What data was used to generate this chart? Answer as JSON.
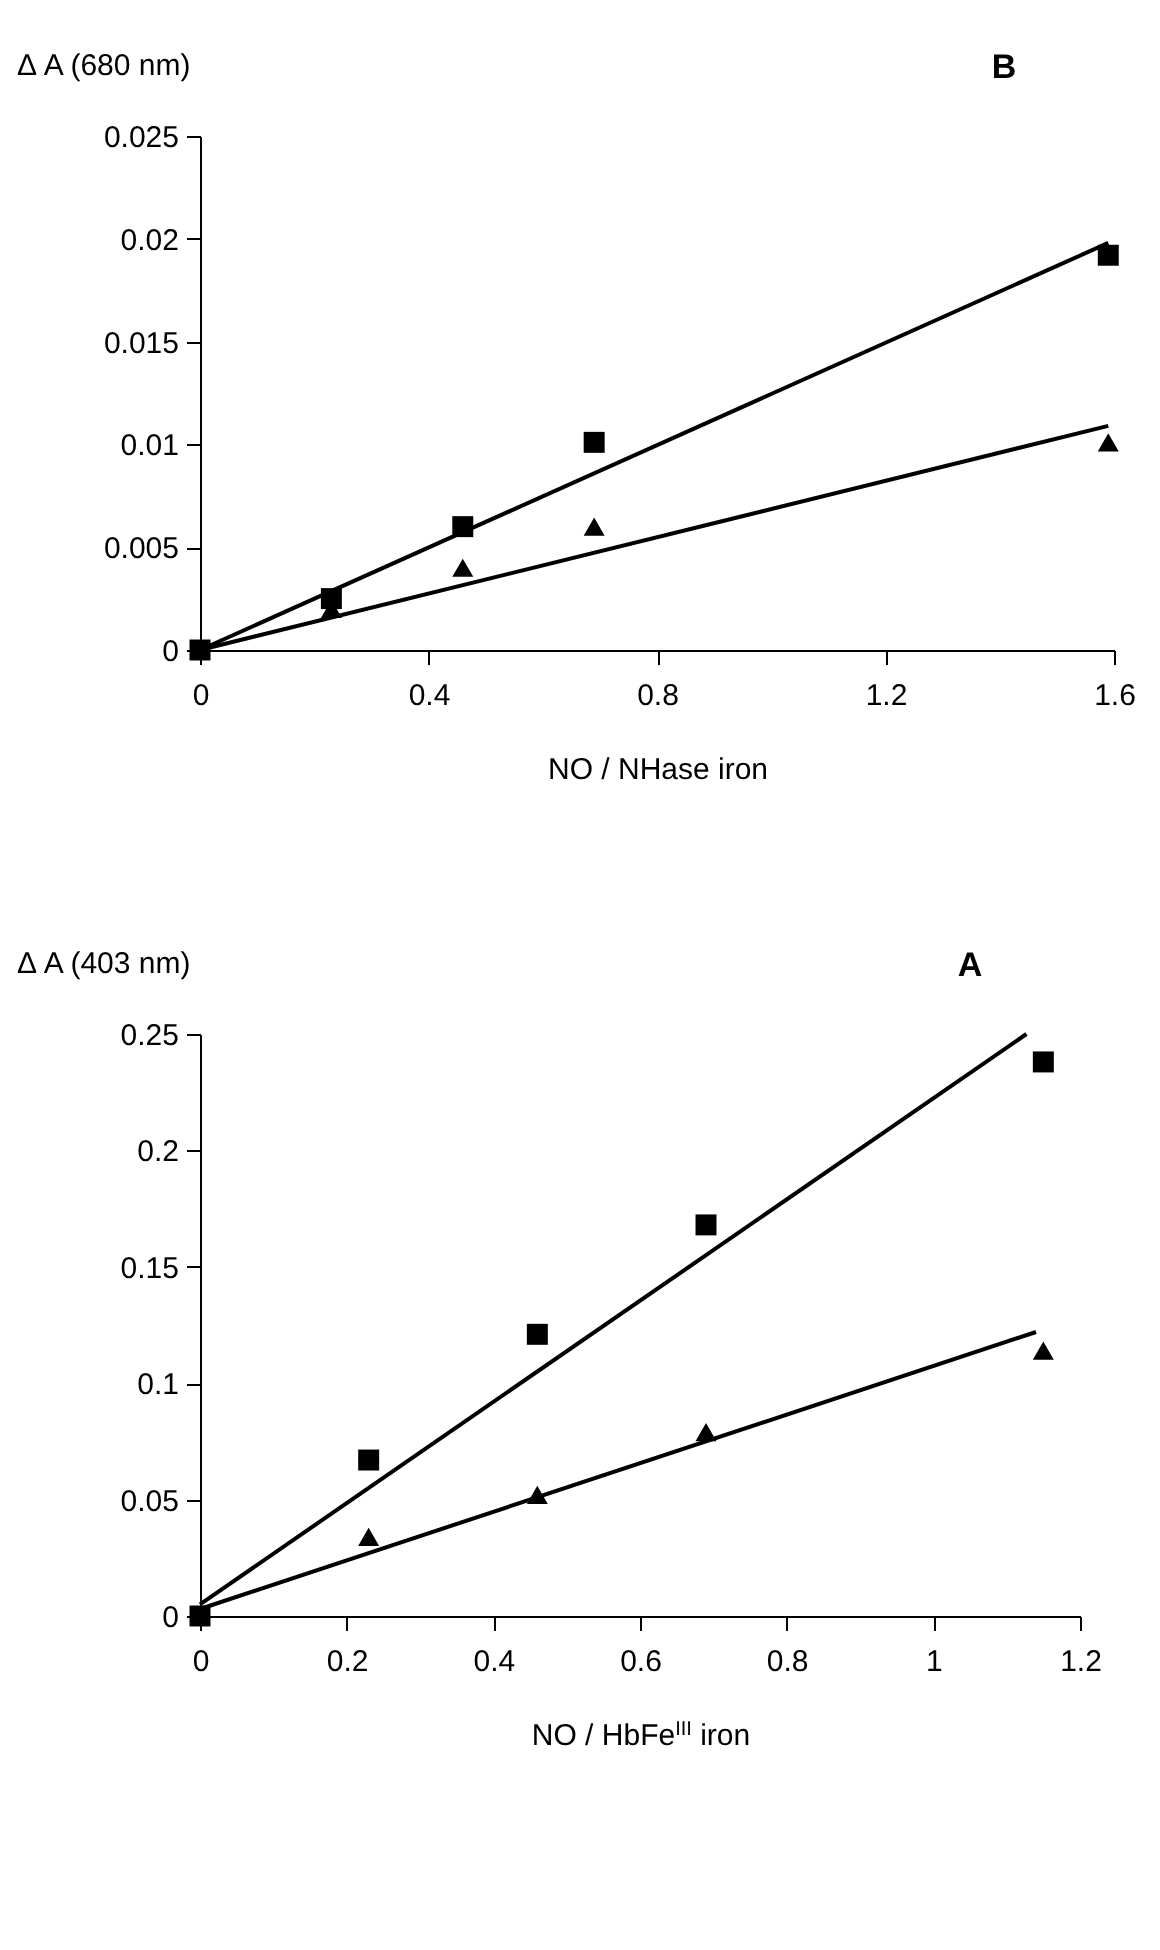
{
  "chart_data": [
    {
      "type": "scatter",
      "ylabel": "Δ A (680 nm)",
      "xlabel": "NO / NHase iron",
      "annotations": [
        "B"
      ],
      "xlim": [
        0,
        1.6
      ],
      "xticks": [
        0,
        0.4,
        0.8,
        1.2,
        1.6
      ],
      "ylim": [
        0,
        0.025
      ],
      "yticks": [
        0,
        0.005,
        0.01,
        0.015,
        0.02,
        0.025
      ],
      "grid": false,
      "x": [
        0,
        0.23,
        0.46,
        0.69,
        1.59
      ],
      "series": [
        {
          "color": "#000000",
          "marker": "square",
          "values": [
            0,
            0.0025,
            0.006,
            0.0101,
            0.0192
          ]
        },
        {
          "color": "#000000",
          "marker": "triangle",
          "values": [
            null,
            0.002,
            0.004,
            0.006,
            0.0101
          ]
        },
        {
          "type": "line",
          "color": "#000000",
          "marker": "none",
          "x": [
            0,
            1.59
          ],
          "values": [
            0,
            0.0198
          ]
        },
        {
          "type": "line",
          "color": "#000000",
          "marker": "none",
          "x": [
            0,
            1.59
          ],
          "values": [
            0,
            0.0109
          ]
        }
      ]
    },
    {
      "type": "scatter",
      "ylabel": "Δ A (403 nm)",
      "xlabel": "NO / HbFe$^{III}$ iron",
      "annotations": [
        "A"
      ],
      "xlim": [
        0,
        1.2
      ],
      "xticks": [
        0,
        0.2,
        0.4,
        0.6,
        0.8,
        1,
        1.2
      ],
      "ylim": [
        0,
        0.25
      ],
      "yticks": [
        0,
        0.05,
        0.1,
        0.15,
        0.2,
        0.25
      ],
      "grid": false,
      "x": [
        0,
        0.23,
        0.46,
        0.69,
        1.15
      ],
      "series": [
        {
          "color": "#000000",
          "marker": "square",
          "values": [
            0,
            0.067,
            0.121,
            0.168,
            0.238
          ]
        },
        {
          "color": "#000000",
          "marker": "triangle",
          "values": [
            null,
            0.034,
            0.052,
            0.079,
            0.114
          ]
        },
        {
          "type": "line",
          "color": "#000000",
          "marker": "none",
          "x": [
            0,
            1.127
          ],
          "values": [
            0.005,
            0.25
          ]
        },
        {
          "type": "line",
          "color": "#000000",
          "marker": "none",
          "x": [
            0,
            1.14
          ],
          "values": [
            0.003,
            0.122
          ]
        }
      ]
    }
  ]
}
